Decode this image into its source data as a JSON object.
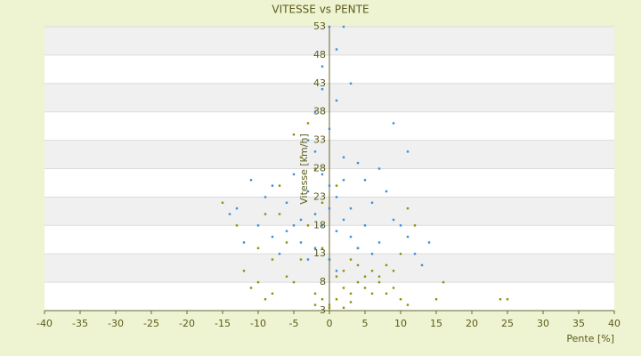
{
  "chart_data": {
    "type": "scatter",
    "title": "VITESSE vs PENTE",
    "x_label": "Pente [%]",
    "y_label": "Vitesse [km/h]",
    "xlim": [
      -40,
      40
    ],
    "xticks": [
      -40,
      -35,
      -30,
      -25,
      -20,
      -15,
      -10,
      -5,
      0,
      5,
      10,
      15,
      20,
      25,
      30,
      35,
      40
    ],
    "ylim": [
      3,
      53
    ],
    "yticks": [
      3,
      8,
      13,
      18,
      23,
      28,
      33,
      38,
      43,
      48,
      53
    ],
    "series": [
      {
        "color": "#8f8f0a",
        "x": [
          -15,
          -13,
          -12,
          -11,
          -10,
          -9,
          -8,
          -7,
          -6,
          -5,
          -4,
          -3,
          -2,
          -1,
          0,
          1,
          2,
          3,
          4,
          5,
          6,
          7,
          8,
          9,
          10,
          11,
          12,
          15,
          16,
          24,
          25,
          -3,
          -2,
          -1,
          0,
          1,
          2,
          3,
          4,
          5,
          6,
          7,
          8,
          -5,
          -4,
          -6,
          -7,
          -8,
          0,
          2,
          -2,
          3,
          9,
          10,
          11,
          -10,
          -9,
          4,
          -1,
          1
        ],
        "values": [
          22,
          18,
          10,
          7,
          14,
          20,
          12,
          25,
          9,
          34,
          30,
          18,
          6,
          5,
          4,
          5,
          7,
          6,
          8,
          9,
          10,
          8,
          11,
          7,
          5,
          4,
          18,
          5,
          8,
          5,
          5,
          36,
          28,
          14,
          12,
          9,
          10,
          12,
          11,
          7,
          6,
          9,
          6,
          8,
          12,
          15,
          20,
          6,
          3.5,
          3.5,
          4,
          4.5,
          10,
          13,
          21,
          8,
          5,
          14,
          22,
          25
        ]
      },
      {
        "color": "#3a8fd9",
        "x": [
          -14,
          -13,
          -12,
          -11,
          -10,
          -9,
          -8,
          -7,
          -6,
          -5,
          -4,
          -3,
          -2,
          -1,
          0,
          1,
          2,
          -1,
          1,
          3,
          -2,
          0,
          2,
          -3,
          4,
          5,
          6,
          7,
          8,
          9,
          10,
          11,
          12,
          14,
          13,
          -4,
          -2,
          -1,
          0,
          1,
          2,
          3,
          4,
          5,
          6,
          0,
          1,
          -1,
          2,
          -2,
          3,
          9,
          11,
          -5,
          -6,
          0,
          1,
          -3,
          7,
          -8
        ],
        "values": [
          20,
          21,
          15,
          26,
          18,
          23,
          16,
          13,
          22,
          27,
          19,
          24,
          31,
          42,
          53,
          49,
          53,
          46,
          40,
          43,
          38,
          35,
          30,
          33,
          29,
          26,
          22,
          28,
          24,
          19,
          18,
          16,
          13,
          15,
          11,
          15,
          20,
          18,
          21,
          17,
          19,
          16,
          14,
          18,
          13,
          25,
          23,
          27,
          26,
          14,
          21,
          36,
          31,
          18,
          17,
          12,
          10,
          12,
          15,
          25
        ]
      }
    ]
  }
}
